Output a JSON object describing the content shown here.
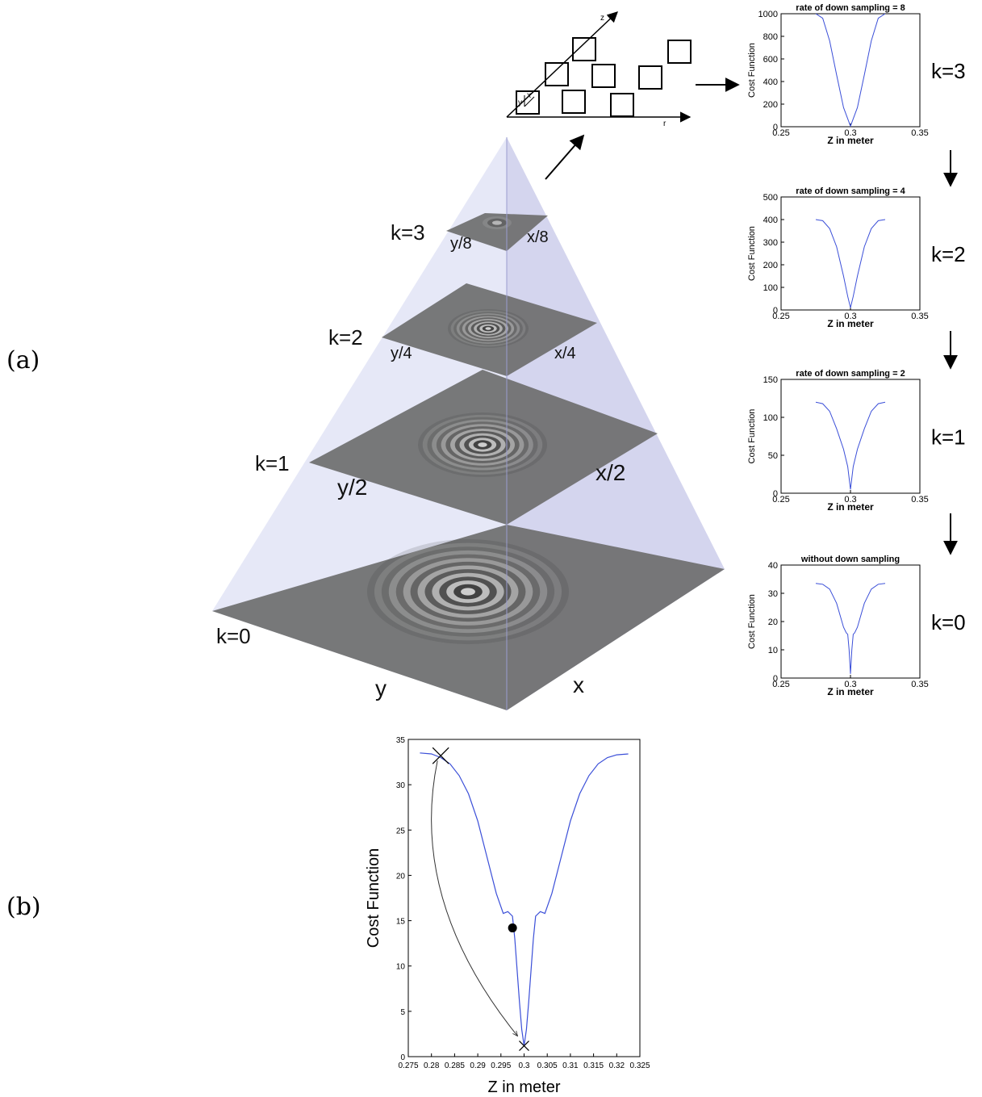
{
  "panel_labels": {
    "a": "(a)",
    "b": "(b)"
  },
  "pyramid": {
    "levels": [
      {
        "k": "k=0",
        "dim_y": "y",
        "dim_x": "x"
      },
      {
        "k": "k=1",
        "dim_y": "y/2",
        "dim_x": "x/2"
      },
      {
        "k": "k=2",
        "dim_y": "y/4",
        "dim_x": "x/4"
      },
      {
        "k": "k=3",
        "dim_y": "y/8",
        "dim_x": "x/8"
      }
    ]
  },
  "grid_inset": {
    "axis_z": "z",
    "axis_r": "r",
    "axis_y": "y",
    "axis_x": "x"
  },
  "colors": {
    "curve": "#3b4fd8",
    "pyramid_fill": "#c8cbee",
    "plane": "#6e6e6e"
  },
  "chart_data": [
    {
      "type": "line",
      "title": "rate of down sampling = 8",
      "side_label": "k=3",
      "xlabel": "Z in meter",
      "ylabel": "Cost Function",
      "xlim": [
        0.25,
        0.35
      ],
      "ylim": [
        0,
        1000
      ],
      "xticks": [
        "0.25",
        "0.3",
        "0.35"
      ],
      "yticks": [
        "0",
        "200",
        "400",
        "600",
        "800",
        "1000"
      ],
      "x": [
        0.275,
        0.28,
        0.285,
        0.29,
        0.295,
        0.3,
        0.305,
        0.31,
        0.315,
        0.32,
        0.325
      ],
      "y": [
        1000,
        960,
        760,
        460,
        170,
        5,
        170,
        460,
        760,
        960,
        1000
      ]
    },
    {
      "type": "line",
      "title": "rate of down sampling = 4",
      "side_label": "k=2",
      "xlabel": "Z in meter",
      "ylabel": "Cost Function",
      "xlim": [
        0.25,
        0.35
      ],
      "ylim": [
        0,
        500
      ],
      "xticks": [
        "0.25",
        "0.3",
        "0.35"
      ],
      "yticks": [
        "0",
        "100",
        "200",
        "300",
        "400",
        "500"
      ],
      "x": [
        0.275,
        0.28,
        0.285,
        0.29,
        0.295,
        0.298,
        0.3,
        0.302,
        0.305,
        0.31,
        0.315,
        0.32,
        0.325
      ],
      "y": [
        400,
        395,
        360,
        280,
        150,
        60,
        10,
        60,
        150,
        280,
        360,
        395,
        400
      ]
    },
    {
      "type": "line",
      "title": "rate of down sampling = 2",
      "side_label": "k=1",
      "xlabel": "Z in meter",
      "ylabel": "Cost Function",
      "xlim": [
        0.25,
        0.35
      ],
      "ylim": [
        0,
        150
      ],
      "xticks": [
        "0.25",
        "0.3",
        "0.35"
      ],
      "yticks": [
        "0",
        "50",
        "100",
        "150"
      ],
      "x": [
        0.275,
        0.28,
        0.285,
        0.29,
        0.295,
        0.298,
        0.3,
        0.302,
        0.305,
        0.31,
        0.315,
        0.32,
        0.325
      ],
      "y": [
        120,
        118,
        108,
        85,
        58,
        35,
        5,
        35,
        58,
        85,
        108,
        118,
        120
      ]
    },
    {
      "type": "line",
      "title": "without down sampling",
      "side_label": "k=0",
      "xlabel": "Z in meter",
      "ylabel": "Cost Function",
      "xlim": [
        0.25,
        0.35
      ],
      "ylim": [
        0,
        40
      ],
      "xticks": [
        "0.25",
        "0.3",
        "0.35"
      ],
      "yticks": [
        "0",
        "10",
        "20",
        "30",
        "40"
      ],
      "x": [
        0.275,
        0.28,
        0.285,
        0.29,
        0.295,
        0.297,
        0.298,
        0.299,
        0.3,
        0.301,
        0.302,
        0.303,
        0.305,
        0.31,
        0.315,
        0.32,
        0.325
      ],
      "y": [
        33.5,
        33.2,
        31.5,
        26.5,
        18,
        16,
        15.5,
        10,
        1.5,
        10,
        15.5,
        16,
        18,
        26.5,
        31.5,
        33.2,
        33.5
      ]
    },
    {
      "type": "line",
      "title": "",
      "side_label": "",
      "xlabel": "Z in meter",
      "ylabel": "Cost Function",
      "xlim": [
        0.275,
        0.325
      ],
      "ylim": [
        0,
        35
      ],
      "xticks": [
        "0.275",
        "0.28",
        "0.285",
        "0.29",
        "0.295",
        "0.3",
        "0.305",
        "0.31",
        "0.315",
        "0.32",
        "0.325"
      ],
      "yticks": [
        "0",
        "5",
        "10",
        "15",
        "20",
        "25",
        "30",
        "35"
      ],
      "x": [
        0.2775,
        0.28,
        0.282,
        0.284,
        0.286,
        0.288,
        0.29,
        0.292,
        0.294,
        0.2955,
        0.2965,
        0.2975,
        0.298,
        0.2985,
        0.299,
        0.2995,
        0.3,
        0.3005,
        0.301,
        0.3015,
        0.302,
        0.3025,
        0.3035,
        0.3045,
        0.306,
        0.308,
        0.31,
        0.312,
        0.314,
        0.316,
        0.318,
        0.32,
        0.3225
      ],
      "y": [
        33.5,
        33.4,
        33.0,
        32.3,
        31.0,
        29.0,
        26.0,
        22.0,
        18.0,
        15.8,
        16.0,
        15.5,
        13.0,
        9.5,
        6.0,
        3.0,
        1.2,
        3.0,
        6.0,
        9.5,
        13.0,
        15.5,
        16.0,
        15.8,
        18.0,
        22.0,
        26.0,
        29.0,
        31.0,
        32.3,
        33.0,
        33.3,
        33.4
      ],
      "markers": {
        "start_x": 0.282,
        "start_y": 33.2,
        "end_x": 0.3,
        "end_y": 1.2,
        "dot_x": 0.2975,
        "dot_y": 14.2
      }
    }
  ]
}
